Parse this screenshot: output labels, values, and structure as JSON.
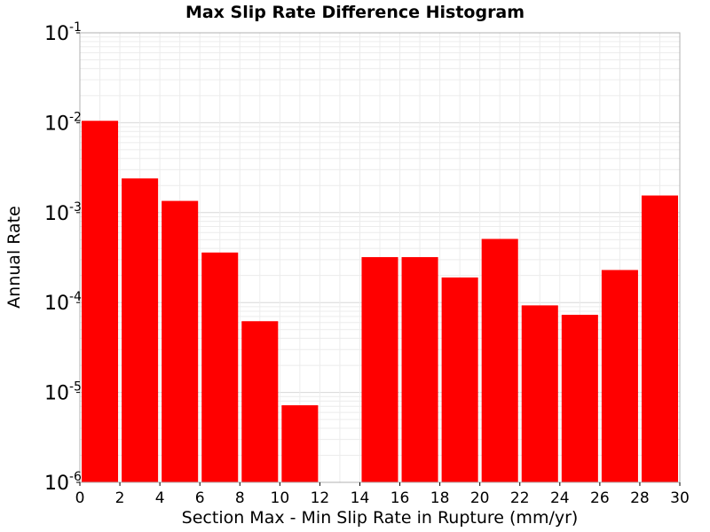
{
  "chart_data": {
    "type": "bar",
    "title": "Max Slip Rate Difference Histogram",
    "xlabel": "Section Max - Min Slip Rate in Rupture (mm/yr)",
    "ylabel": "Annual Rate",
    "x_bins": [
      [
        0,
        2
      ],
      [
        2,
        4
      ],
      [
        4,
        6
      ],
      [
        6,
        8
      ],
      [
        8,
        10
      ],
      [
        10,
        12
      ],
      [
        12,
        14
      ],
      [
        14,
        16
      ],
      [
        16,
        18
      ],
      [
        18,
        20
      ],
      [
        20,
        22
      ],
      [
        22,
        24
      ],
      [
        24,
        26
      ],
      [
        26,
        28
      ],
      [
        28,
        30
      ]
    ],
    "values": [
      0.0105,
      0.0024,
      0.00135,
      0.00036,
      6.2e-05,
      7.2e-06,
      null,
      0.00032,
      0.00032,
      0.00019,
      0.00051,
      9.3e-05,
      7.3e-05,
      0.00023,
      0.00155
    ],
    "xlim": [
      0,
      30
    ],
    "ylim": [
      1e-06,
      0.1
    ],
    "y_scale": "log",
    "x_ticks": [
      "0",
      "2",
      "4",
      "6",
      "8",
      "10",
      "12",
      "14",
      "16",
      "18",
      "20",
      "22",
      "24",
      "26",
      "28",
      "30"
    ],
    "y_ticks": [
      {
        "base": "10",
        "exp": "-6",
        "value": 1e-06
      },
      {
        "base": "10",
        "exp": "-5",
        "value": 1e-05
      },
      {
        "base": "10",
        "exp": "-4",
        "value": 0.0001
      },
      {
        "base": "10",
        "exp": "-3",
        "value": 0.001
      },
      {
        "base": "10",
        "exp": "-2",
        "value": 0.01
      },
      {
        "base": "10",
        "exp": "-1",
        "value": 0.1
      }
    ],
    "grid": true,
    "bar_color": "#ff0000"
  }
}
